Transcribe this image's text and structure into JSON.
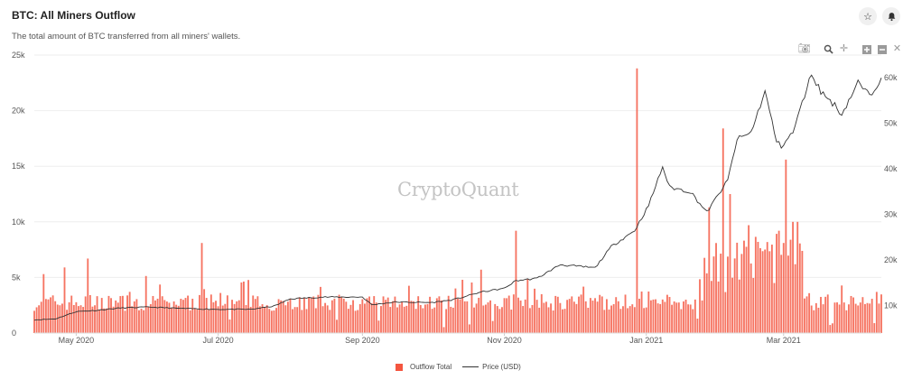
{
  "header": {
    "title": "BTC: All Miners Outflow",
    "subtitle": "The total amount of BTC transferred from all miners' wallets."
  },
  "watermark": "CryptoQuant",
  "icons": {
    "star": "star-icon",
    "bell": "bell-icon",
    "toolbar": [
      "camera-icon",
      "zoom-icon",
      "pan-icon",
      "zoom-in-icon",
      "zoom-out-icon",
      "reset-axes-icon"
    ]
  },
  "colors": {
    "outflow": "#f4553f",
    "price": "#333333",
    "grid": "#eeeeee"
  },
  "chart_data": {
    "type": "bar",
    "title": "BTC: All Miners Outflow",
    "x_range": [
      "2020-04-13",
      "2021-04-12"
    ],
    "x_ticks": [
      "May 2020",
      "Jul 2020",
      "Sep 2020",
      "Nov 2020",
      "Jan 2021",
      "Mar 2021"
    ],
    "y_left": {
      "range": [
        0,
        25000
      ],
      "ticks": [
        "0",
        "5k",
        "10k",
        "15k",
        "20k",
        "25k"
      ]
    },
    "y_right": {
      "range": [
        4000,
        65000
      ],
      "ticks": [
        "10k",
        "20k",
        "30k",
        "40k",
        "50k",
        "60k"
      ]
    },
    "grid": true,
    "legend_position": "bottom-center",
    "series": [
      {
        "name": "Outflow Total",
        "type": "bar",
        "axis": "left",
        "baseline_range": [
          2000,
          3500
        ],
        "spikes": [
          {
            "date": "2020-04-17",
            "value": 5300
          },
          {
            "date": "2020-04-26",
            "value": 5900
          },
          {
            "date": "2020-05-06",
            "value": 6700
          },
          {
            "date": "2020-06-24",
            "value": 8100
          },
          {
            "date": "2020-10-22",
            "value": 5700
          },
          {
            "date": "2020-11-06",
            "value": 9200
          },
          {
            "date": "2020-12-28",
            "value": 23800
          },
          {
            "date": "2021-01-28",
            "value": 11300
          },
          {
            "date": "2021-02-03",
            "value": 18400
          },
          {
            "date": "2021-02-06",
            "value": 12500
          },
          {
            "date": "2021-02-14",
            "value": 9700
          },
          {
            "date": "2021-02-27",
            "value": 9200
          },
          {
            "date": "2021-03-02",
            "value": 15600
          },
          {
            "date": "2021-03-05",
            "value": 10000
          },
          {
            "date": "2021-03-07",
            "value": 10000
          },
          {
            "date": "2021-04-10",
            "value": 3700
          }
        ]
      },
      {
        "name": "Price (USD)",
        "type": "line",
        "axis": "right",
        "points": [
          [
            "2020-04-13",
            6900
          ],
          [
            "2020-04-22",
            7100
          ],
          [
            "2020-05-01",
            8700
          ],
          [
            "2020-05-10",
            9000
          ],
          [
            "2020-05-20",
            9500
          ],
          [
            "2020-06-01",
            9700
          ],
          [
            "2020-06-15",
            9400
          ],
          [
            "2020-07-01",
            9200
          ],
          [
            "2020-07-15",
            9200
          ],
          [
            "2020-07-25",
            9900
          ],
          [
            "2020-08-01",
            11500
          ],
          [
            "2020-08-15",
            11900
          ],
          [
            "2020-09-01",
            11900
          ],
          [
            "2020-09-05",
            10200
          ],
          [
            "2020-09-15",
            10800
          ],
          [
            "2020-10-01",
            10700
          ],
          [
            "2020-10-10",
            11300
          ],
          [
            "2020-10-22",
            13000
          ],
          [
            "2020-11-01",
            13800
          ],
          [
            "2020-11-06",
            15500
          ],
          [
            "2020-11-15",
            16000
          ],
          [
            "2020-11-25",
            19000
          ],
          [
            "2020-12-01",
            18700
          ],
          [
            "2020-12-10",
            18300
          ],
          [
            "2020-12-17",
            23000
          ],
          [
            "2020-12-27",
            26500
          ],
          [
            "2021-01-02",
            32000
          ],
          [
            "2021-01-08",
            40500
          ],
          [
            "2021-01-11",
            36000
          ],
          [
            "2021-01-20",
            35000
          ],
          [
            "2021-01-27",
            30500
          ],
          [
            "2021-02-05",
            37500
          ],
          [
            "2021-02-09",
            46500
          ],
          [
            "2021-02-15",
            48000
          ],
          [
            "2021-02-21",
            57000
          ],
          [
            "2021-02-26",
            46000
          ],
          [
            "2021-02-28",
            45000
          ],
          [
            "2021-03-05",
            48000
          ],
          [
            "2021-03-13",
            61000
          ],
          [
            "2021-03-17",
            57000
          ],
          [
            "2021-03-23",
            54000
          ],
          [
            "2021-03-26",
            52000
          ],
          [
            "2021-04-02",
            59000
          ],
          [
            "2021-04-07",
            56000
          ],
          [
            "2021-04-12",
            60000
          ]
        ]
      }
    ]
  },
  "legend": [
    {
      "label": "Outflow Total"
    },
    {
      "label": "Price (USD)"
    }
  ]
}
